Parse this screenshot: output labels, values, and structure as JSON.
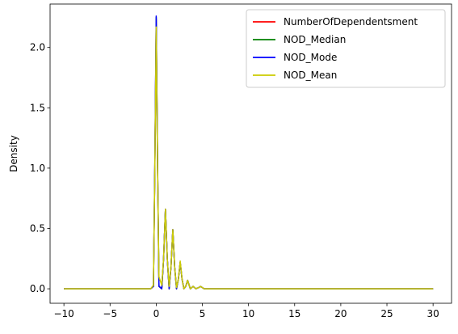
{
  "chart_data": {
    "type": "line",
    "title": "",
    "xlabel": "",
    "ylabel": "Density",
    "xlim": [
      -11.5,
      32.0
    ],
    "ylim": [
      -0.12,
      2.36
    ],
    "xticks": [
      -10,
      -5,
      0,
      5,
      10,
      15,
      20,
      25,
      30
    ],
    "yticks": [
      0.0,
      0.5,
      1.0,
      1.5,
      2.0
    ],
    "xtick_labels": [
      "−10",
      "−5",
      "0",
      "5",
      "10",
      "15",
      "20",
      "25",
      "30"
    ],
    "ytick_labels": [
      "0.0",
      "0.5",
      "1.0",
      "1.5",
      "2.0"
    ],
    "grid": false,
    "legend_position": "top-right",
    "series": [
      {
        "name": "NumberOfDependentsment",
        "color": "#ff0000",
        "x": [
          -10,
          -0.6,
          -0.3,
          -0.15,
          0,
          0.15,
          0.3,
          0.6,
          0.8,
          1.0,
          1.2,
          1.4,
          1.6,
          1.8,
          2.0,
          2.2,
          2.4,
          2.6,
          2.8,
          3.0,
          3.2,
          3.4,
          3.7,
          4.0,
          4.3,
          4.6,
          4.8,
          5.0,
          5.2,
          5.5,
          6.0,
          30
        ],
        "y": [
          0,
          0,
          0.02,
          1.0,
          2.24,
          1.0,
          0.02,
          0,
          0.25,
          0.66,
          0.25,
          0,
          0.18,
          0.49,
          0.18,
          0,
          0.08,
          0.22,
          0.08,
          0,
          0.02,
          0.07,
          0.0,
          0.02,
          0.0,
          0.01,
          0.02,
          0.01,
          0,
          0,
          0,
          0
        ]
      },
      {
        "name": "NOD_Median",
        "color": "#008000",
        "x": [
          -10,
          -0.6,
          -0.3,
          -0.15,
          0,
          0.15,
          0.3,
          0.6,
          0.8,
          1.0,
          1.2,
          1.4,
          1.6,
          1.8,
          2.0,
          2.2,
          2.4,
          2.6,
          2.8,
          3.0,
          3.2,
          3.4,
          3.7,
          4.0,
          4.3,
          4.6,
          4.8,
          5.0,
          5.2,
          5.5,
          6.0,
          30
        ],
        "y": [
          0,
          0,
          0.02,
          1.0,
          2.25,
          1.0,
          0.02,
          0,
          0.25,
          0.66,
          0.25,
          0,
          0.18,
          0.49,
          0.18,
          0,
          0.08,
          0.22,
          0.08,
          0,
          0.02,
          0.07,
          0.0,
          0.02,
          0.0,
          0.01,
          0.02,
          0.01,
          0,
          0,
          0,
          0
        ]
      },
      {
        "name": "NOD_Mode",
        "color": "#0000ff",
        "x": [
          -10,
          -0.6,
          -0.3,
          -0.15,
          0,
          0.15,
          0.3,
          0.6,
          0.8,
          1.0,
          1.2,
          1.4,
          1.6,
          1.8,
          2.0,
          2.2,
          2.4,
          2.6,
          2.8,
          3.0,
          3.2,
          3.4,
          3.7,
          4.0,
          4.3,
          4.6,
          4.8,
          5.0,
          5.2,
          5.5,
          6.0,
          30
        ],
        "y": [
          0,
          0,
          0.02,
          1.02,
          2.26,
          1.02,
          0.02,
          0,
          0.25,
          0.66,
          0.25,
          0,
          0.18,
          0.49,
          0.18,
          0,
          0.08,
          0.22,
          0.08,
          0,
          0.02,
          0.07,
          0.0,
          0.02,
          0.0,
          0.01,
          0.02,
          0.01,
          0,
          0,
          0,
          0
        ]
      },
      {
        "name": "NOD_Mean",
        "color": "#cccc00",
        "x": [
          -10,
          -0.6,
          -0.3,
          -0.15,
          0,
          0.15,
          0.3,
          0.6,
          0.8,
          1.0,
          1.2,
          1.4,
          1.6,
          1.8,
          2.0,
          2.2,
          2.4,
          2.6,
          2.8,
          3.0,
          3.2,
          3.4,
          3.7,
          4.0,
          4.3,
          4.6,
          4.8,
          5.0,
          5.2,
          5.5,
          6.0,
          30
        ],
        "y": [
          0,
          0,
          0.03,
          0.98,
          2.17,
          0.98,
          0.1,
          0.03,
          0.25,
          0.66,
          0.25,
          0.02,
          0.18,
          0.49,
          0.18,
          0.01,
          0.08,
          0.23,
          0.08,
          0,
          0.02,
          0.07,
          0.0,
          0.02,
          0.0,
          0.01,
          0.02,
          0.01,
          0,
          0,
          0,
          0
        ]
      }
    ]
  }
}
